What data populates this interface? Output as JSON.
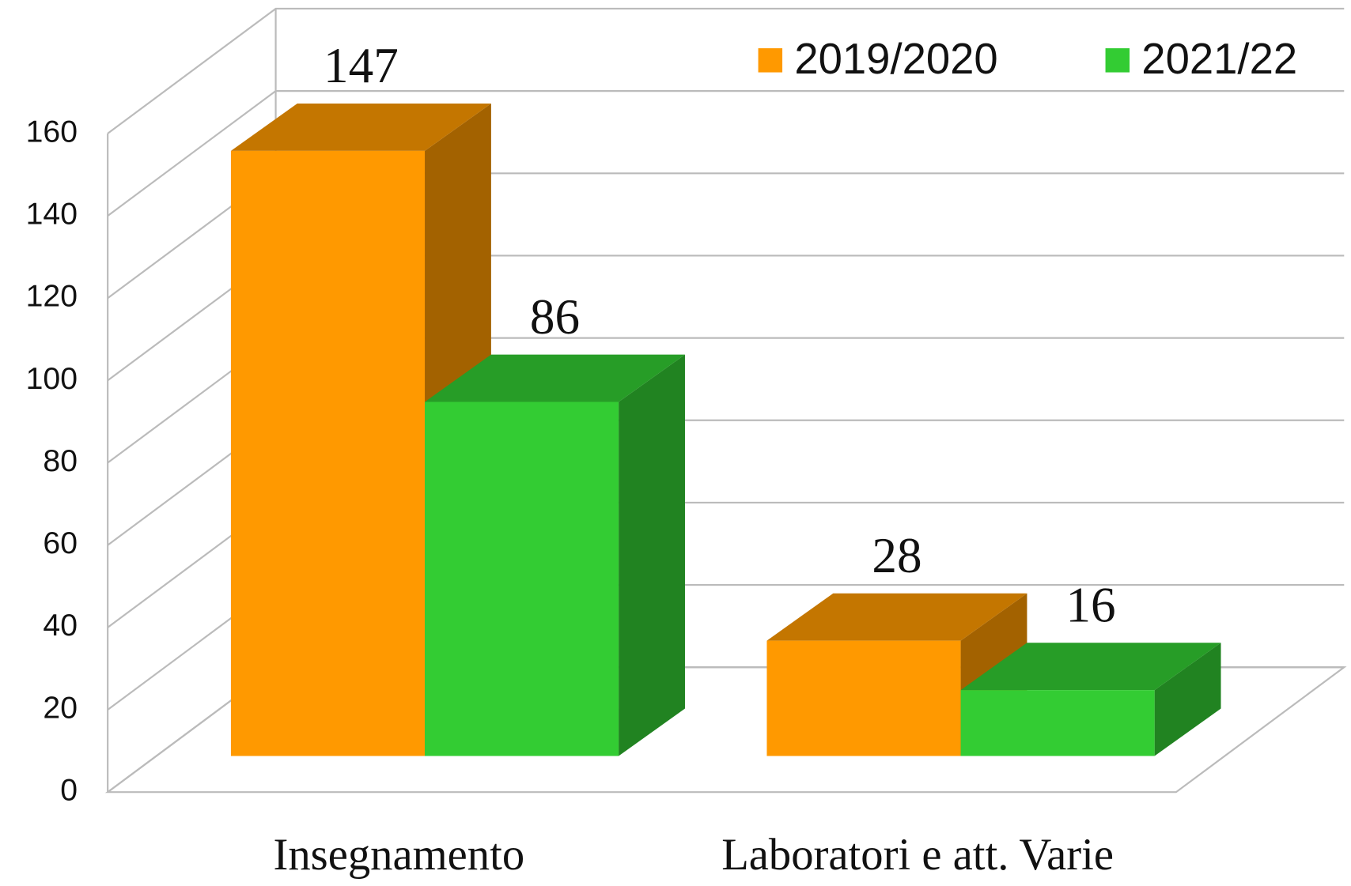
{
  "chart_data": {
    "type": "bar3d",
    "categories": [
      "Insegnamento",
      "Laboratori e att. Varie"
    ],
    "series": [
      {
        "name": "2019/2020",
        "color": "#ff9900",
        "values": [
          147,
          28
        ],
        "value_labels": [
          "147",
          "28"
        ]
      },
      {
        "name": "2021/22",
        "color": "#33cc33",
        "values": [
          86,
          16
        ],
        "value_labels": [
          "86",
          "16"
        ]
      }
    ],
    "ylim": [
      0,
      160
    ],
    "yticks": [
      0,
      20,
      40,
      60,
      80,
      100,
      120,
      140,
      160
    ],
    "grid": true,
    "legend": "top-right"
  }
}
